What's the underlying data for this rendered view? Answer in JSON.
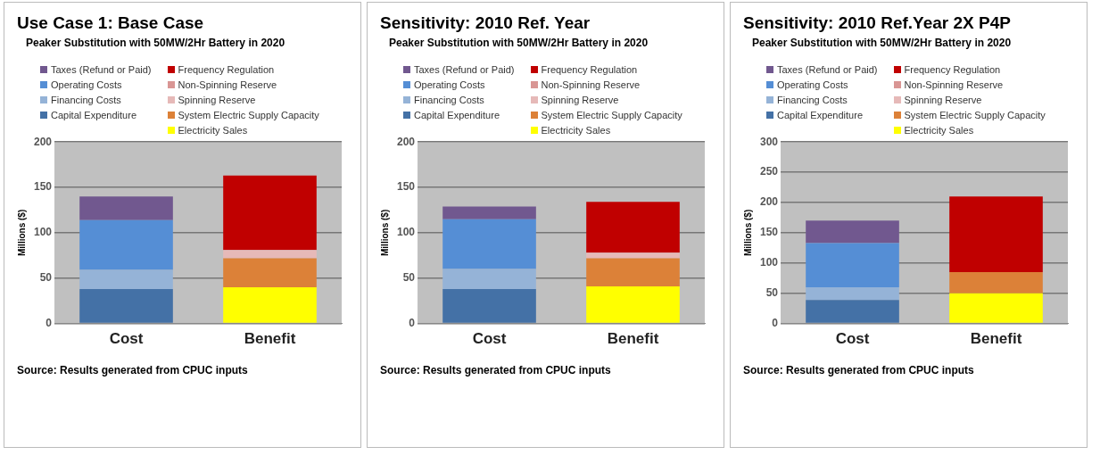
{
  "chart_data": [
    {
      "type": "bar",
      "title": "Use Case 1: Base Case",
      "subtitle": "Peaker Substitution with  50MW/2Hr Battery in 2020",
      "ylabel": "Millions ($)",
      "categories": [
        "Cost",
        "Benefit"
      ],
      "stacked": true,
      "ylim": [
        0,
        200
      ],
      "yticks": [
        0,
        50,
        100,
        150,
        200
      ],
      "grid": "y",
      "legend": "top",
      "annotations": [
        "Source: Results generated from CPUC inputs"
      ],
      "series": [
        {
          "name": "Capital Expenditure",
          "color": "#4471a6",
          "values": [
            38,
            null
          ]
        },
        {
          "name": "Financing Costs",
          "color": "#95b3d7",
          "values": [
            21,
            null
          ]
        },
        {
          "name": "Operating Costs",
          "color": "#558ed5",
          "values": [
            55,
            null
          ]
        },
        {
          "name": "Taxes (Refund or Paid)",
          "color": "#71588f",
          "values": [
            26,
            null
          ]
        },
        {
          "name": "Electricity Sales",
          "color": "#ffff00",
          "values": [
            null,
            40
          ]
        },
        {
          "name": "System Electric Supply Capacity",
          "color": "#dc8138",
          "values": [
            null,
            32
          ]
        },
        {
          "name": "Spinning Reserve",
          "color": "#e6b9b8",
          "values": [
            null,
            9
          ]
        },
        {
          "name": "Non-Spinning Reserve",
          "color": "#d99694",
          "values": [
            null,
            0
          ]
        },
        {
          "name": "Frequency Regulation",
          "color": "#c00000",
          "values": [
            null,
            82
          ]
        }
      ]
    },
    {
      "type": "bar",
      "title": "Sensitivity: 2010 Ref. Year",
      "subtitle": "Peaker Substitution with  50MW/2Hr Battery in 2020",
      "ylabel": "Millions ($)",
      "categories": [
        "Cost",
        "Benefit"
      ],
      "stacked": true,
      "ylim": [
        0,
        200
      ],
      "yticks": [
        0,
        50,
        100,
        150,
        200
      ],
      "grid": "y",
      "legend": "top",
      "annotations": [
        "Source: Results generated from CPUC inputs"
      ],
      "series": [
        {
          "name": "Capital Expenditure",
          "color": "#4471a6",
          "values": [
            38,
            null
          ]
        },
        {
          "name": "Financing Costs",
          "color": "#95b3d7",
          "values": [
            22,
            null
          ]
        },
        {
          "name": "Operating Costs",
          "color": "#558ed5",
          "values": [
            55,
            null
          ]
        },
        {
          "name": "Taxes (Refund or Paid)",
          "color": "#71588f",
          "values": [
            14,
            null
          ]
        },
        {
          "name": "Electricity Sales",
          "color": "#ffff00",
          "values": [
            null,
            41
          ]
        },
        {
          "name": "System Electric Supply Capacity",
          "color": "#dc8138",
          "values": [
            null,
            31
          ]
        },
        {
          "name": "Spinning Reserve",
          "color": "#e6b9b8",
          "values": [
            null,
            6
          ]
        },
        {
          "name": "Non-Spinning Reserve",
          "color": "#d99694",
          "values": [
            null,
            0
          ]
        },
        {
          "name": "Frequency Regulation",
          "color": "#c00000",
          "values": [
            null,
            56
          ]
        }
      ]
    },
    {
      "type": "bar",
      "title": "Sensitivity: 2010 Ref.Year 2X P4P",
      "subtitle": "Peaker Substitution with  50MW/2Hr Battery in 2020",
      "ylabel": "Millions ($)",
      "categories": [
        "Cost",
        "Benefit"
      ],
      "stacked": true,
      "ylim": [
        0,
        300
      ],
      "yticks": [
        0,
        50,
        100,
        150,
        200,
        250,
        300
      ],
      "grid": "y",
      "legend": "top",
      "annotations": [
        "Source: Results generated from CPUC inputs"
      ],
      "series": [
        {
          "name": "Capital Expenditure",
          "color": "#4471a6",
          "values": [
            39,
            null
          ]
        },
        {
          "name": "Financing Costs",
          "color": "#95b3d7",
          "values": [
            21,
            null
          ]
        },
        {
          "name": "Operating Costs",
          "color": "#558ed5",
          "values": [
            73,
            null
          ]
        },
        {
          "name": "Taxes (Refund or Paid)",
          "color": "#71588f",
          "values": [
            37,
            null
          ]
        },
        {
          "name": "Electricity Sales",
          "color": "#ffff00",
          "values": [
            null,
            50
          ]
        },
        {
          "name": "System Electric Supply Capacity",
          "color": "#dc8138",
          "values": [
            null,
            35
          ]
        },
        {
          "name": "Spinning Reserve",
          "color": "#e6b9b8",
          "values": [
            null,
            0
          ]
        },
        {
          "name": "Non-Spinning Reserve",
          "color": "#d99694",
          "values": [
            null,
            0
          ]
        },
        {
          "name": "Frequency Regulation",
          "color": "#c00000",
          "values": [
            null,
            125
          ]
        }
      ]
    }
  ]
}
